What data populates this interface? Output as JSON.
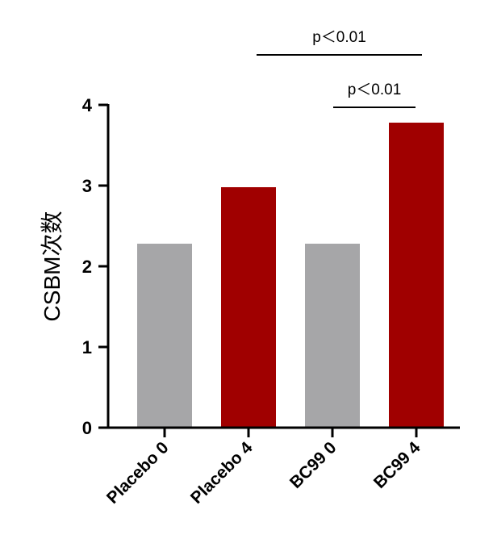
{
  "chart_data": {
    "type": "bar",
    "categories": [
      "Placebo 0",
      "Placebo 4",
      "BC99 0",
      "BC99 4"
    ],
    "values": [
      2.28,
      2.98,
      2.28,
      3.78
    ],
    "colors": [
      "#a6a6a8",
      "#a00000",
      "#a6a6a8",
      "#a00000"
    ],
    "title": "",
    "xlabel": "",
    "ylabel": "CSBM次数",
    "ylim": [
      0,
      4
    ],
    "yticks": [
      "0",
      "1",
      "2",
      "3",
      "4"
    ],
    "grid": false,
    "annotations": [
      {
        "text": "p＜0.01",
        "from": "Placebo 4",
        "to": "BC99 4",
        "level": 2
      },
      {
        "text": "p＜0.01",
        "from": "BC99 0",
        "to": "BC99 4",
        "level": 1
      }
    ]
  }
}
